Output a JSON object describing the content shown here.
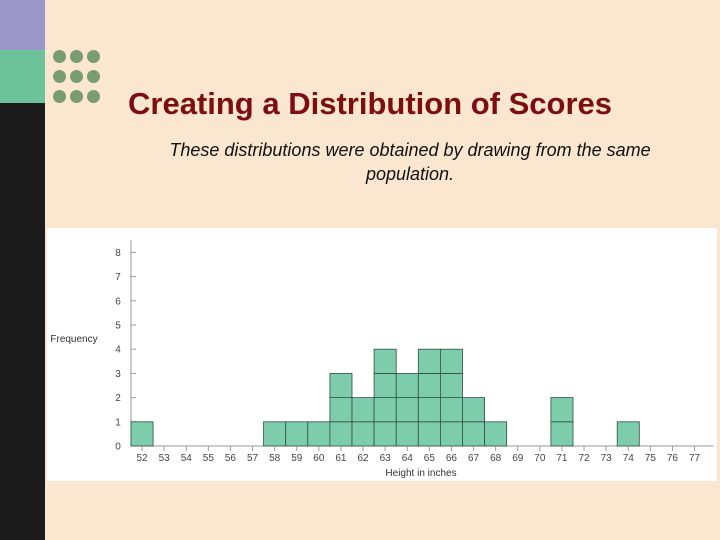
{
  "slide": {
    "title": "Creating a Distribution of Scores",
    "subtitle": "These distributions were obtained by drawing from the same population."
  },
  "colors": {
    "bar_fill": "#7dccab",
    "bar_stroke": "#2f4f44",
    "title": "#7b0d13",
    "background": "#fbe6cf"
  },
  "chart_data": {
    "type": "bar",
    "ylabel": "Frequency",
    "xlabel": "Height in inches",
    "ylim": [
      0,
      8
    ],
    "yticks": [
      0,
      1,
      2,
      3,
      4,
      5,
      6,
      7,
      8
    ],
    "categories": [
      52,
      53,
      54,
      55,
      56,
      57,
      58,
      59,
      60,
      61,
      62,
      63,
      64,
      65,
      66,
      67,
      68,
      69,
      70,
      71,
      72,
      73,
      74,
      75,
      76,
      77
    ],
    "values": [
      1,
      0,
      0,
      0,
      0,
      0,
      1,
      1,
      1,
      3,
      2,
      4,
      3,
      4,
      4,
      2,
      1,
      0,
      0,
      2,
      0,
      0,
      1,
      0,
      0,
      0
    ],
    "grid": false
  }
}
